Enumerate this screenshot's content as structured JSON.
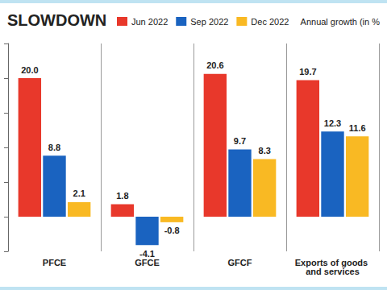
{
  "chart_data": {
    "type": "bar",
    "title": "SLOWDOWN",
    "subtitle": "Annual growth (in %",
    "categories": [
      "PFCE",
      "GFCE",
      "GFCF",
      "Exports of goods and services"
    ],
    "series": [
      {
        "name": "Jun 2022",
        "color": "#e8382b",
        "values": [
          20.0,
          1.8,
          20.6,
          19.7
        ],
        "value_labels": [
          "20.0",
          "1.8",
          "20.6",
          "19.7"
        ]
      },
      {
        "name": "Sep 2022",
        "color": "#1a63c0",
        "values": [
          8.8,
          -4.1,
          9.7,
          12.3
        ],
        "value_labels": [
          "8.8",
          "-4.1",
          "9.7",
          "12.3"
        ]
      },
      {
        "name": "Dec 2022",
        "color": "#f9b923",
        "values": [
          2.1,
          -0.8,
          8.3,
          11.6
        ],
        "value_labels": [
          "2.1",
          "-0.8",
          "8.3",
          "11.6"
        ]
      }
    ],
    "ylim": [
      -5,
      25
    ],
    "yticks": [
      -5,
      0,
      5,
      10,
      15,
      20,
      25
    ],
    "grid": false,
    "legend": "top-right",
    "data_labels": true,
    "tick_labels": "x"
  }
}
